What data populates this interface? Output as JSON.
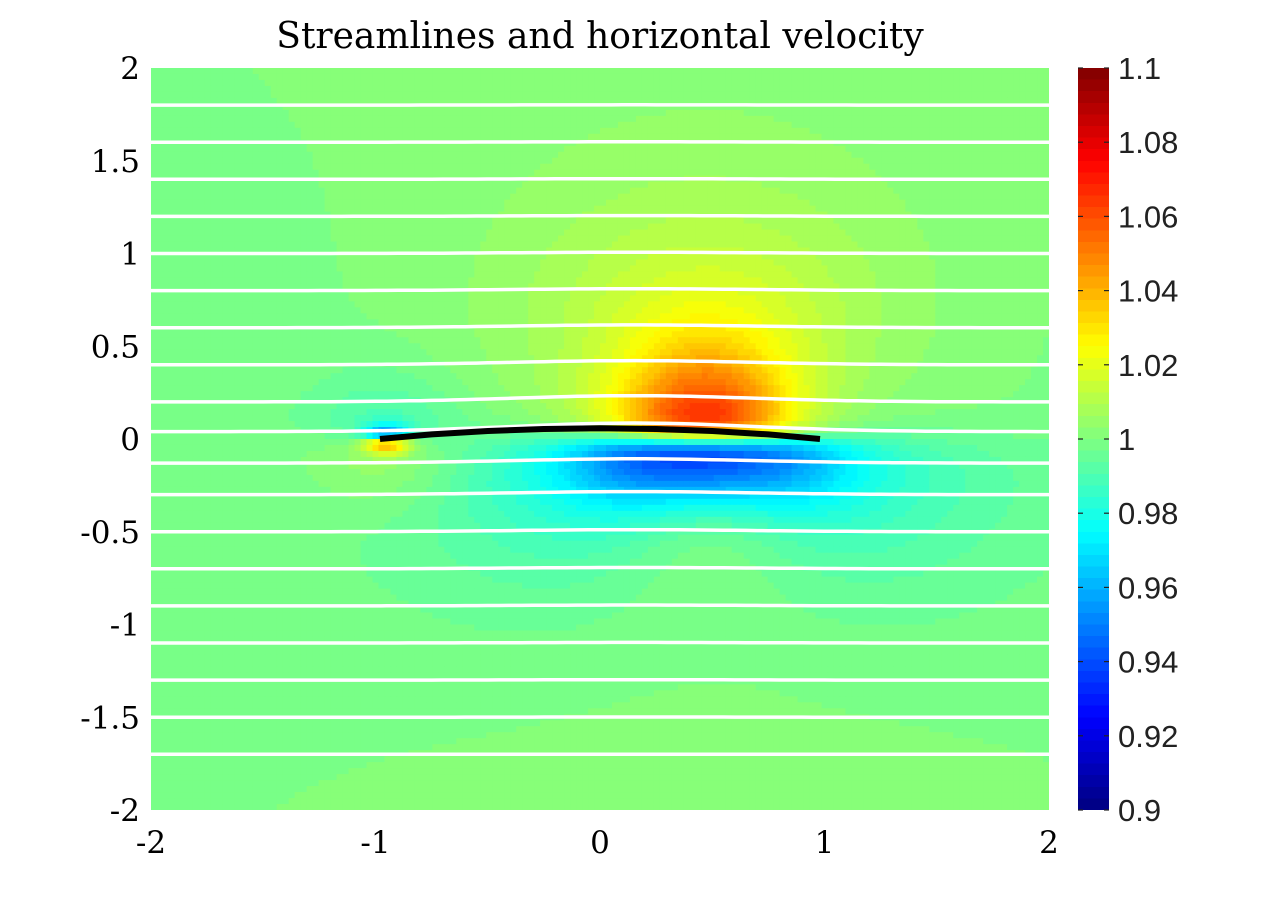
{
  "chart_data": {
    "type": "heatmap",
    "title": "Streamlines and horizontal velocity",
    "xlabel": "",
    "ylabel": "",
    "xlim": [
      -2,
      2
    ],
    "ylim": [
      -2,
      2
    ],
    "x_ticks": [
      -2,
      -1,
      0,
      1,
      2
    ],
    "x_tick_labels": [
      "-2",
      "-1",
      "0",
      "1",
      "2"
    ],
    "y_ticks": [
      2,
      1.5,
      1,
      0.5,
      0,
      -0.5,
      -1,
      -1.5,
      -2
    ],
    "y_tick_labels": [
      "2",
      "1.5",
      "1",
      "0.5",
      "0",
      "-0.5",
      "-1",
      "-1.5",
      "-2"
    ],
    "colormap": "jet",
    "clim": [
      0.9,
      1.1
    ],
    "colorbar_ticks": [
      1.1,
      1.08,
      1.06,
      1.04,
      1.02,
      1,
      0.98,
      0.96,
      0.94,
      0.92,
      0.9
    ],
    "colorbar_tick_labels": [
      "1.1",
      "1.08",
      "1.06",
      "1.04",
      "1.02",
      "1",
      "0.98",
      "0.96",
      "0.94",
      "0.92",
      "0.9"
    ],
    "field": "horizontal velocity",
    "freestream_value": 1.0,
    "max_value_above_airfoil": 1.045,
    "min_value_below_airfoil": 0.955,
    "leading_edge_extremes": {
      "above": 0.94,
      "below": 1.06
    },
    "streamline_count": 19,
    "streamline_start_y": [
      1.8,
      1.6,
      1.4,
      1.2,
      1.0,
      0.8,
      0.6,
      0.4,
      0.2,
      0.04,
      -0.13,
      -0.3,
      -0.5,
      -0.7,
      -0.9,
      -1.1,
      -1.3,
      -1.5,
      -1.7
    ],
    "airfoil": {
      "color": "#000000",
      "x": [
        -0.98,
        -0.75,
        -0.5,
        -0.25,
        0.0,
        0.25,
        0.5,
        0.75,
        0.98
      ],
      "y": [
        0.0,
        0.025,
        0.043,
        0.054,
        0.058,
        0.054,
        0.043,
        0.025,
        0.0
      ]
    },
    "streamline_color": "#ffffff"
  }
}
